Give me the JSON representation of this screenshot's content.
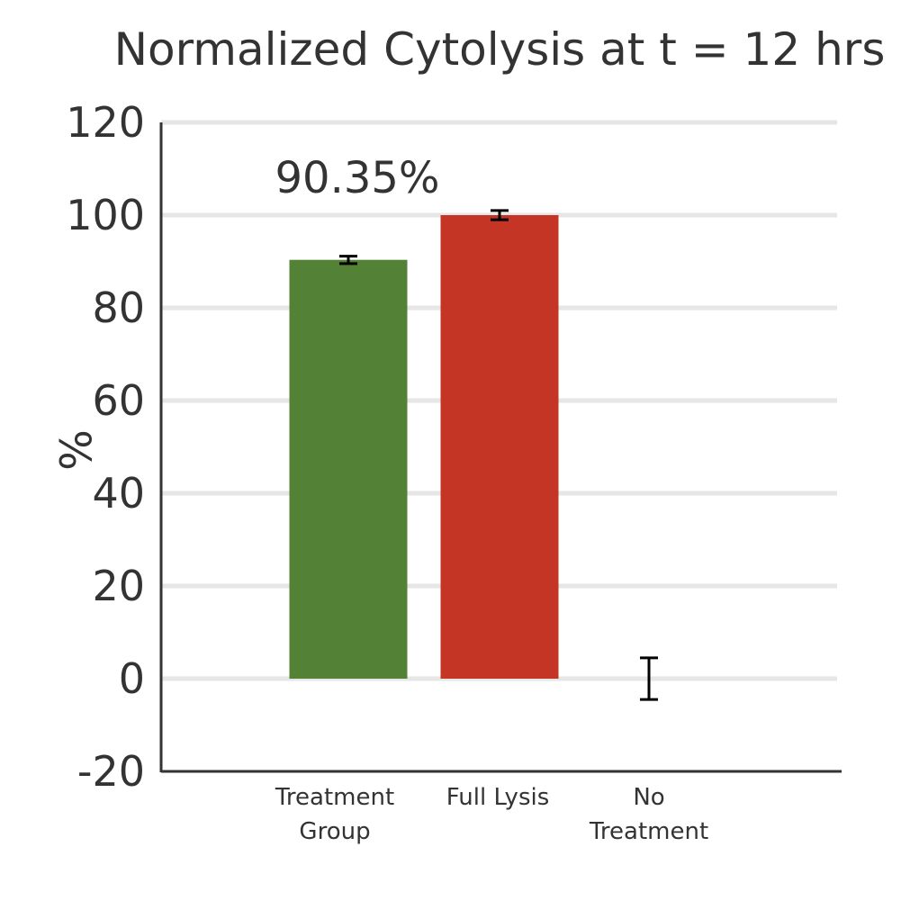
{
  "chart_data": {
    "type": "bar",
    "title": "Normalized Cytolysis at t = 12 hrs",
    "ylabel": "%",
    "xlabel": "",
    "ylim": [
      -20,
      120
    ],
    "yticks": [
      -20,
      0,
      20,
      40,
      60,
      80,
      100,
      120
    ],
    "grid": true,
    "categories": [
      [
        "Treatment",
        "Group"
      ],
      [
        "Full Lysis"
      ],
      [
        "No",
        "Treatment"
      ]
    ],
    "values": [
      90.35,
      100,
      0
    ],
    "errors": [
      0.8,
      1.0,
      4.5
    ],
    "colors": [
      "#538135",
      "#c43526",
      "#ffffff"
    ],
    "data_labels": [
      "90.35%",
      "",
      ""
    ]
  }
}
